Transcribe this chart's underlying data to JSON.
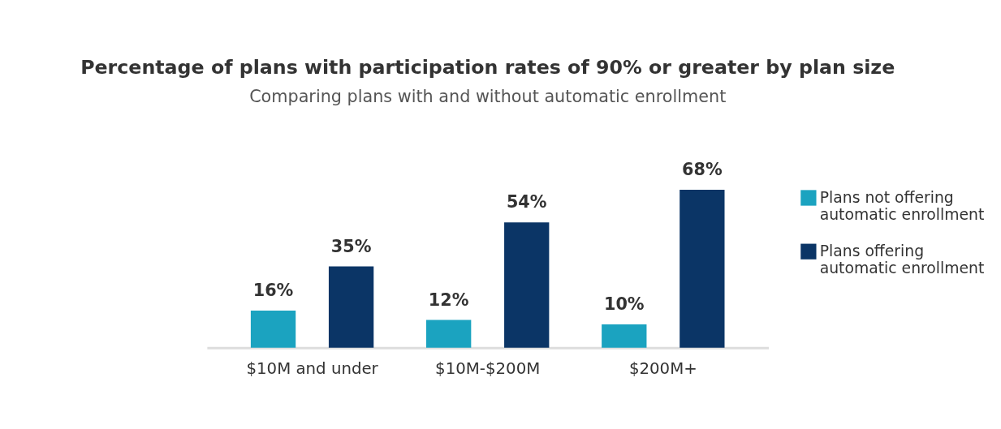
{
  "chart_data": {
    "type": "bar",
    "title": "Percentage of plans with participation rates of 90% or greater by plan size",
    "subtitle": "Comparing plans with and without automatic enrollment",
    "categories": [
      "$10M and under",
      "$10M-$200M",
      "$200M+"
    ],
    "series": [
      {
        "name": "Plans not offering automatic enrollment",
        "color": "#1ba3c0",
        "values": [
          16,
          12,
          10
        ],
        "value_labels": [
          "16%",
          "12%",
          "10%"
        ]
      },
      {
        "name": "Plans offering automatic enrollment",
        "color": "#0b3566",
        "values": [
          35,
          54,
          68
        ],
        "value_labels": [
          "35%",
          "54%",
          "68%"
        ]
      }
    ],
    "legend": "right",
    "grid": false
  }
}
